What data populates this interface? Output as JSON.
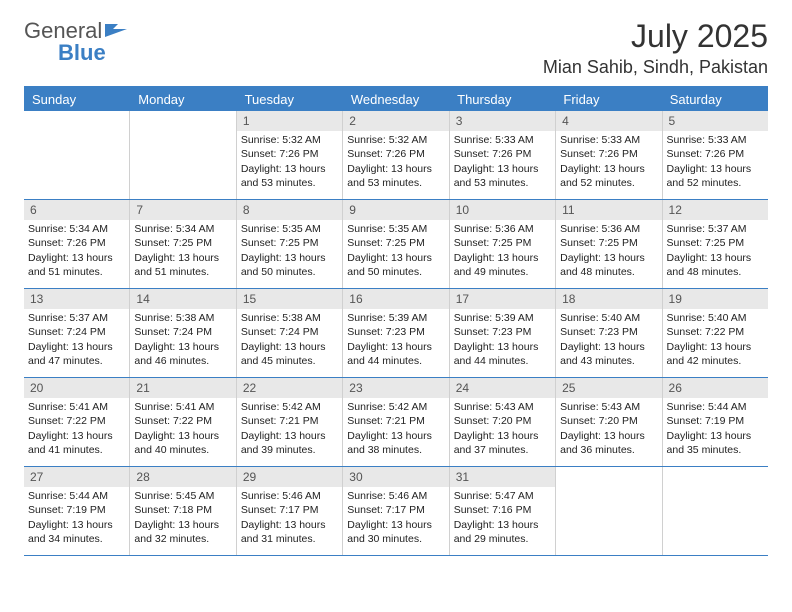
{
  "logo": {
    "part1": "General",
    "part2": "Blue"
  },
  "title": "July 2025",
  "location": "Mian Sahib, Sindh, Pakistan",
  "colors": {
    "accent": "#3b7fc4",
    "daynum_bg": "#e8e8e8",
    "text": "#222222",
    "logo_gray": "#555555"
  },
  "weekdays": [
    "Sunday",
    "Monday",
    "Tuesday",
    "Wednesday",
    "Thursday",
    "Friday",
    "Saturday"
  ],
  "weeks": [
    [
      {
        "num": "",
        "sunrise": "",
        "sunset": "",
        "daylight": ""
      },
      {
        "num": "",
        "sunrise": "",
        "sunset": "",
        "daylight": ""
      },
      {
        "num": "1",
        "sunrise": "Sunrise: 5:32 AM",
        "sunset": "Sunset: 7:26 PM",
        "daylight": "Daylight: 13 hours and 53 minutes."
      },
      {
        "num": "2",
        "sunrise": "Sunrise: 5:32 AM",
        "sunset": "Sunset: 7:26 PM",
        "daylight": "Daylight: 13 hours and 53 minutes."
      },
      {
        "num": "3",
        "sunrise": "Sunrise: 5:33 AM",
        "sunset": "Sunset: 7:26 PM",
        "daylight": "Daylight: 13 hours and 53 minutes."
      },
      {
        "num": "4",
        "sunrise": "Sunrise: 5:33 AM",
        "sunset": "Sunset: 7:26 PM",
        "daylight": "Daylight: 13 hours and 52 minutes."
      },
      {
        "num": "5",
        "sunrise": "Sunrise: 5:33 AM",
        "sunset": "Sunset: 7:26 PM",
        "daylight": "Daylight: 13 hours and 52 minutes."
      }
    ],
    [
      {
        "num": "6",
        "sunrise": "Sunrise: 5:34 AM",
        "sunset": "Sunset: 7:26 PM",
        "daylight": "Daylight: 13 hours and 51 minutes."
      },
      {
        "num": "7",
        "sunrise": "Sunrise: 5:34 AM",
        "sunset": "Sunset: 7:25 PM",
        "daylight": "Daylight: 13 hours and 51 minutes."
      },
      {
        "num": "8",
        "sunrise": "Sunrise: 5:35 AM",
        "sunset": "Sunset: 7:25 PM",
        "daylight": "Daylight: 13 hours and 50 minutes."
      },
      {
        "num": "9",
        "sunrise": "Sunrise: 5:35 AM",
        "sunset": "Sunset: 7:25 PM",
        "daylight": "Daylight: 13 hours and 50 minutes."
      },
      {
        "num": "10",
        "sunrise": "Sunrise: 5:36 AM",
        "sunset": "Sunset: 7:25 PM",
        "daylight": "Daylight: 13 hours and 49 minutes."
      },
      {
        "num": "11",
        "sunrise": "Sunrise: 5:36 AM",
        "sunset": "Sunset: 7:25 PM",
        "daylight": "Daylight: 13 hours and 48 minutes."
      },
      {
        "num": "12",
        "sunrise": "Sunrise: 5:37 AM",
        "sunset": "Sunset: 7:25 PM",
        "daylight": "Daylight: 13 hours and 48 minutes."
      }
    ],
    [
      {
        "num": "13",
        "sunrise": "Sunrise: 5:37 AM",
        "sunset": "Sunset: 7:24 PM",
        "daylight": "Daylight: 13 hours and 47 minutes."
      },
      {
        "num": "14",
        "sunrise": "Sunrise: 5:38 AM",
        "sunset": "Sunset: 7:24 PM",
        "daylight": "Daylight: 13 hours and 46 minutes."
      },
      {
        "num": "15",
        "sunrise": "Sunrise: 5:38 AM",
        "sunset": "Sunset: 7:24 PM",
        "daylight": "Daylight: 13 hours and 45 minutes."
      },
      {
        "num": "16",
        "sunrise": "Sunrise: 5:39 AM",
        "sunset": "Sunset: 7:23 PM",
        "daylight": "Daylight: 13 hours and 44 minutes."
      },
      {
        "num": "17",
        "sunrise": "Sunrise: 5:39 AM",
        "sunset": "Sunset: 7:23 PM",
        "daylight": "Daylight: 13 hours and 44 minutes."
      },
      {
        "num": "18",
        "sunrise": "Sunrise: 5:40 AM",
        "sunset": "Sunset: 7:23 PM",
        "daylight": "Daylight: 13 hours and 43 minutes."
      },
      {
        "num": "19",
        "sunrise": "Sunrise: 5:40 AM",
        "sunset": "Sunset: 7:22 PM",
        "daylight": "Daylight: 13 hours and 42 minutes."
      }
    ],
    [
      {
        "num": "20",
        "sunrise": "Sunrise: 5:41 AM",
        "sunset": "Sunset: 7:22 PM",
        "daylight": "Daylight: 13 hours and 41 minutes."
      },
      {
        "num": "21",
        "sunrise": "Sunrise: 5:41 AM",
        "sunset": "Sunset: 7:22 PM",
        "daylight": "Daylight: 13 hours and 40 minutes."
      },
      {
        "num": "22",
        "sunrise": "Sunrise: 5:42 AM",
        "sunset": "Sunset: 7:21 PM",
        "daylight": "Daylight: 13 hours and 39 minutes."
      },
      {
        "num": "23",
        "sunrise": "Sunrise: 5:42 AM",
        "sunset": "Sunset: 7:21 PM",
        "daylight": "Daylight: 13 hours and 38 minutes."
      },
      {
        "num": "24",
        "sunrise": "Sunrise: 5:43 AM",
        "sunset": "Sunset: 7:20 PM",
        "daylight": "Daylight: 13 hours and 37 minutes."
      },
      {
        "num": "25",
        "sunrise": "Sunrise: 5:43 AM",
        "sunset": "Sunset: 7:20 PM",
        "daylight": "Daylight: 13 hours and 36 minutes."
      },
      {
        "num": "26",
        "sunrise": "Sunrise: 5:44 AM",
        "sunset": "Sunset: 7:19 PM",
        "daylight": "Daylight: 13 hours and 35 minutes."
      }
    ],
    [
      {
        "num": "27",
        "sunrise": "Sunrise: 5:44 AM",
        "sunset": "Sunset: 7:19 PM",
        "daylight": "Daylight: 13 hours and 34 minutes."
      },
      {
        "num": "28",
        "sunrise": "Sunrise: 5:45 AM",
        "sunset": "Sunset: 7:18 PM",
        "daylight": "Daylight: 13 hours and 32 minutes."
      },
      {
        "num": "29",
        "sunrise": "Sunrise: 5:46 AM",
        "sunset": "Sunset: 7:17 PM",
        "daylight": "Daylight: 13 hours and 31 minutes."
      },
      {
        "num": "30",
        "sunrise": "Sunrise: 5:46 AM",
        "sunset": "Sunset: 7:17 PM",
        "daylight": "Daylight: 13 hours and 30 minutes."
      },
      {
        "num": "31",
        "sunrise": "Sunrise: 5:47 AM",
        "sunset": "Sunset: 7:16 PM",
        "daylight": "Daylight: 13 hours and 29 minutes."
      },
      {
        "num": "",
        "sunrise": "",
        "sunset": "",
        "daylight": ""
      },
      {
        "num": "",
        "sunrise": "",
        "sunset": "",
        "daylight": ""
      }
    ]
  ]
}
